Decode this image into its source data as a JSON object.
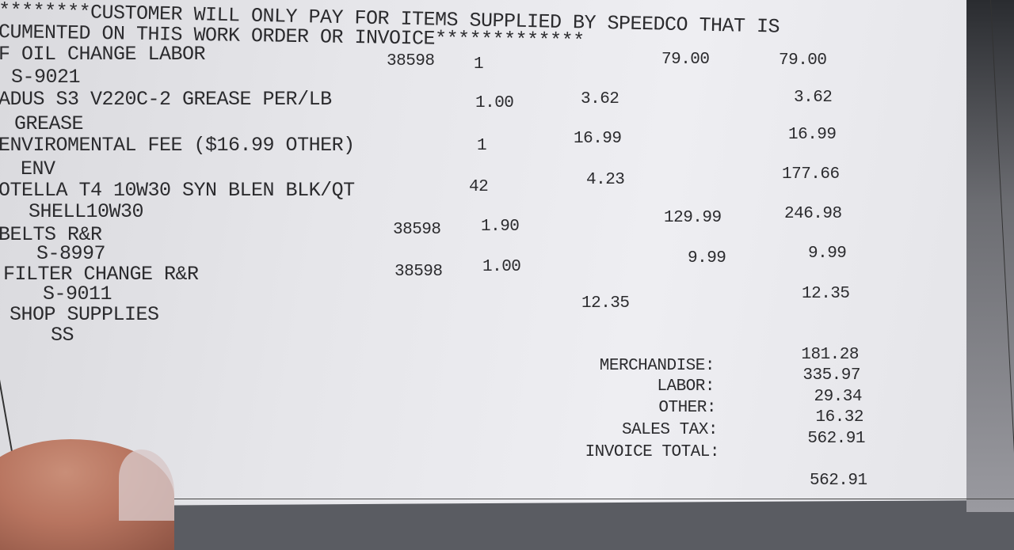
{
  "notice": {
    "line1": "********CUSTOMER WILL ONLY PAY FOR ITEMS SUPPLIED BY SPEEDCO THAT IS",
    "line2": "CUMENTED ON THIS WORK ORDER OR INVOICE*************"
  },
  "items": [
    {
      "description": "F OIL CHANGE LABOR",
      "code": "S-9021",
      "ref": "38598",
      "qty": "1",
      "price": "79.00",
      "amount": "79.00"
    },
    {
      "description": "ADUS S3 V220C-2 GREASE PER/LB",
      "code": "GREASE",
      "qty": "1.00",
      "price": "3.62",
      "amount": "3.62"
    },
    {
      "description": "ENVIROMENTAL FEE ($16.99 OTHER)",
      "code": "ENV",
      "qty": "1",
      "price": "16.99",
      "amount": "16.99"
    },
    {
      "description": "OTELLA T4 10W30 SYN BLEN BLK/QT",
      "code": "SHELL10W30",
      "qty": "42",
      "price": "4.23",
      "amount": "177.66"
    },
    {
      "description": "BELTS R&R",
      "code": "S-8997",
      "ref": "38598",
      "qty": "1.90",
      "price": "129.99",
      "amount": "246.98"
    },
    {
      "description": "FILTER CHANGE R&R",
      "code": "S-9011",
      "ref": "38598",
      "qty": "1.00",
      "price": "9.99",
      "amount": "9.99"
    },
    {
      "description": "SHOP SUPPLIES",
      "code": "SS",
      "price": "12.35",
      "amount": "12.35"
    }
  ],
  "totals": [
    {
      "label": "MERCHANDISE:",
      "value": "181.28"
    },
    {
      "label": "LABOR:",
      "value": "335.97"
    },
    {
      "label": "OTHER:",
      "value": "29.34"
    },
    {
      "label": "SALES TAX:",
      "value": "16.32"
    },
    {
      "label": "INVOICE TOTAL:",
      "value": "562.91"
    }
  ],
  "amount_paid": "562.91"
}
